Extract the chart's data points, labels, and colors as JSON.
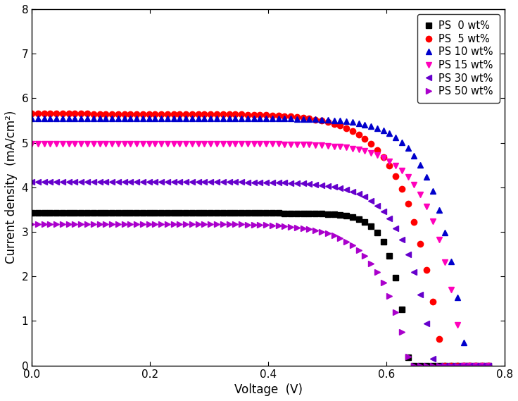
{
  "title": "",
  "xlabel": "Voltage  (V)",
  "ylabel": "Current density  (mA/cm²)",
  "xlim": [
    0.0,
    0.8
  ],
  "ylim": [
    0.0,
    8.0
  ],
  "xticks": [
    0.0,
    0.2,
    0.4,
    0.6,
    0.8
  ],
  "yticks": [
    0,
    1,
    2,
    3,
    4,
    5,
    6,
    7,
    8
  ],
  "series": [
    {
      "label": "PS  0 wt%",
      "color": "#000000",
      "marker": "s",
      "jsc": 3.42,
      "voc": 0.638,
      "n": 1.0
    },
    {
      "label": "PS  5 wt%",
      "color": "#ff0000",
      "marker": "o",
      "jsc": 5.65,
      "voc": 0.695,
      "n": 2.2
    },
    {
      "label": "PS 10 wt%",
      "color": "#0000cc",
      "marker": "^",
      "jsc": 5.55,
      "voc": 0.735,
      "n": 1.8
    },
    {
      "label": "PS 15 wt%",
      "color": "#ff00bb",
      "marker": "v",
      "jsc": 4.98,
      "voc": 0.73,
      "n": 1.9
    },
    {
      "label": "PS 30 wt%",
      "color": "#6600cc",
      "marker": "<",
      "jsc": 4.12,
      "voc": 0.68,
      "n": 1.8
    },
    {
      "label": "PS 50 wt%",
      "color": "#aa00cc",
      "marker": ">",
      "jsc": 3.18,
      "voc": 0.64,
      "n": 2.0
    }
  ],
  "markersize": 6,
  "markevery": 4
}
